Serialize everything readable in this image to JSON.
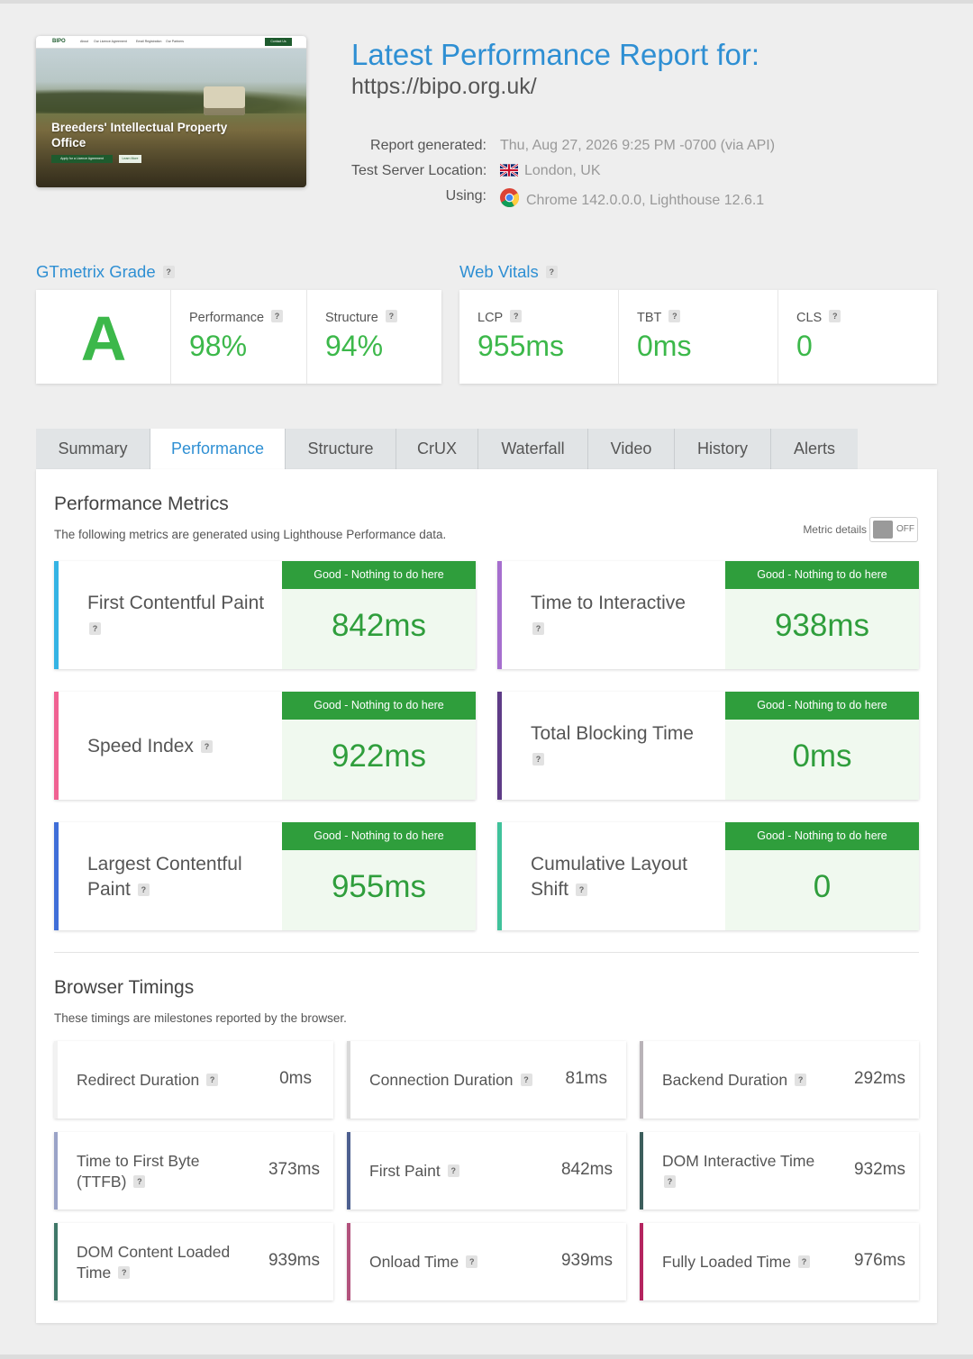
{
  "thumbnail": {
    "logo": "BIPO",
    "nav": [
      "About",
      "Our Licence Agreement",
      "Email Registration",
      "Our Partners"
    ],
    "contact_button": "Contact Us",
    "hero_title": "Breeders' Intellectual Property Office",
    "hero_button_primary": "Apply for a Licence Agreement",
    "hero_button_secondary": "Learn More"
  },
  "header": {
    "title": "Latest Performance Report for:",
    "url": "https://bipo.org.uk/",
    "report_generated_label": "Report generated:",
    "report_generated_value": "Thu, Aug 27, 2026 9:25 PM -0700 (via API)",
    "location_label": "Test Server Location:",
    "location_value": "London, UK",
    "using_label": "Using:",
    "using_value": "Chrome 142.0.0.0, Lighthouse 12.6.1"
  },
  "grade": {
    "heading": "GTmetrix Grade",
    "letter": "A",
    "performance_label": "Performance",
    "performance_value": "98%",
    "structure_label": "Structure",
    "structure_value": "94%"
  },
  "vitals": {
    "heading": "Web Vitals",
    "lcp_label": "LCP",
    "lcp_value": "955ms",
    "tbt_label": "TBT",
    "tbt_value": "0ms",
    "cls_label": "CLS",
    "cls_value": "0"
  },
  "tabs": [
    {
      "label": "Summary"
    },
    {
      "label": "Performance"
    },
    {
      "label": "Structure"
    },
    {
      "label": "CrUX"
    },
    {
      "label": "Waterfall"
    },
    {
      "label": "Video"
    },
    {
      "label": "History"
    },
    {
      "label": "Alerts"
    }
  ],
  "active_tab": "Performance",
  "perf_metrics": {
    "heading": "Performance Metrics",
    "description": "The following metrics are generated using Lighthouse Performance data.",
    "toggle_label": "Metric details",
    "toggle_state": "OFF",
    "items": [
      {
        "name": "First Contentful Paint",
        "status": "Good - Nothing to do here",
        "value": "842ms",
        "color": "#34b3e4"
      },
      {
        "name": "Time to Interactive",
        "status": "Good - Nothing to do here",
        "value": "938ms",
        "color": "#a66fce"
      },
      {
        "name": "Speed Index",
        "status": "Good - Nothing to do here",
        "value": "922ms",
        "color": "#f06292"
      },
      {
        "name": "Total Blocking Time",
        "status": "Good - Nothing to do here",
        "value": "0ms",
        "color": "#5e3c87"
      },
      {
        "name": "Largest Contentful Paint",
        "status": "Good - Nothing to do here",
        "value": "955ms",
        "color": "#3f6ed8"
      },
      {
        "name": "Cumulative Layout Shift",
        "status": "Good - Nothing to do here",
        "value": "0",
        "color": "#40c29b"
      }
    ]
  },
  "browser_timings": {
    "heading": "Browser Timings",
    "description": "These timings are milestones reported by the browser.",
    "items": [
      {
        "name": "Redirect Duration",
        "value": "0ms",
        "color": "#f2f2f2"
      },
      {
        "name": "Connection Duration",
        "value": "81ms",
        "color": "#d9d9d9"
      },
      {
        "name": "Backend Duration",
        "value": "292ms",
        "color": "#b9b3b8"
      },
      {
        "name": "Time to First Byte (TTFB)",
        "value": "373ms",
        "color": "#9aa3c7"
      },
      {
        "name": "First Paint",
        "value": "842ms",
        "color": "#4d5f8f"
      },
      {
        "name": "DOM Interactive Time",
        "value": "932ms",
        "color": "#3c5e5c"
      },
      {
        "name": "DOM Content Loaded Time",
        "value": "939ms",
        "color": "#3f7768"
      },
      {
        "name": "Onload Time",
        "value": "939ms",
        "color": "#b2527c"
      },
      {
        "name": "Fully Loaded Time",
        "value": "976ms",
        "color": "#b4245f"
      }
    ]
  }
}
